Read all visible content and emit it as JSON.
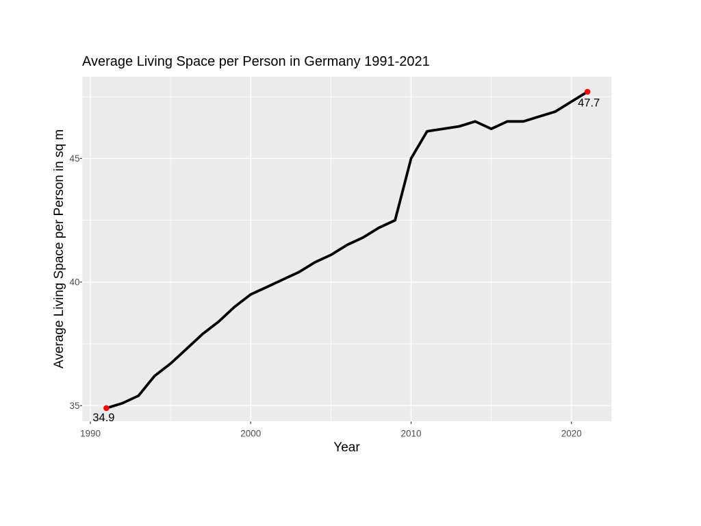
{
  "chart_data": {
    "type": "line",
    "title": "Average Living Space per Person in Germany 1991-2021",
    "xlabel": "Year",
    "ylabel": "Average Living Space per Person in sq m",
    "x": [
      1991,
      1992,
      1993,
      1994,
      1995,
      1996,
      1997,
      1998,
      1999,
      2000,
      2001,
      2002,
      2003,
      2004,
      2005,
      2006,
      2007,
      2008,
      2009,
      2010,
      2011,
      2012,
      2013,
      2014,
      2015,
      2016,
      2017,
      2018,
      2019,
      2020,
      2021
    ],
    "values": [
      34.9,
      35.1,
      35.4,
      36.2,
      36.7,
      37.3,
      37.9,
      38.4,
      39.0,
      39.5,
      39.8,
      40.1,
      40.4,
      40.8,
      41.1,
      41.5,
      41.8,
      42.2,
      42.5,
      45.0,
      46.1,
      46.2,
      46.3,
      46.5,
      46.2,
      46.5,
      46.5,
      46.7,
      46.9,
      47.3,
      47.7
    ],
    "xlim": [
      1989.5,
      2022.5
    ],
    "ylim": [
      34.37,
      48.31
    ],
    "x_ticks": {
      "major": [
        1990,
        2000,
        2010,
        2020
      ],
      "labels": [
        "1990",
        "2000",
        "2010",
        "2020"
      ],
      "minor": [
        1995,
        2005,
        2015
      ]
    },
    "y_ticks": {
      "major": [
        35,
        40,
        45
      ],
      "labels": [
        "35",
        "40",
        "45"
      ],
      "minor": [
        37.5,
        42.5,
        47.5
      ]
    },
    "annotations": [
      {
        "x": 1991,
        "value": 34.9,
        "label": "34.9"
      },
      {
        "x": 2021,
        "value": 47.7,
        "label": "47.7"
      }
    ],
    "legend_position": "none",
    "grid": "on",
    "colors": {
      "line": "#000000",
      "point": "#FF0000",
      "panel": "#EBEBEB",
      "grid": "#FFFFFF",
      "tick_label": "#4D4D4D",
      "tick_mark": "#333333",
      "text": "#000000"
    }
  }
}
